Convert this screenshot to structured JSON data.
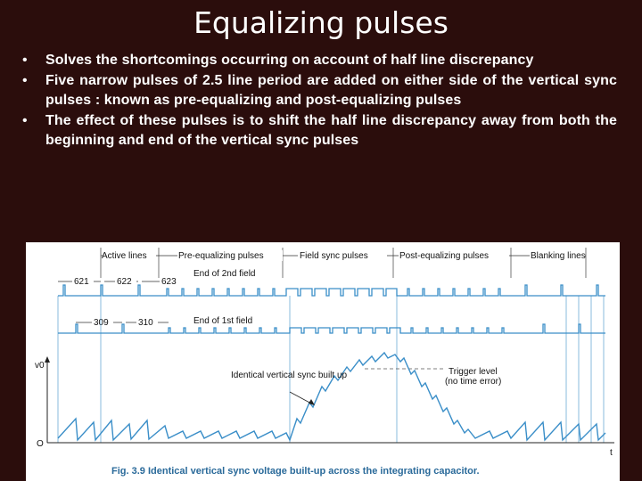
{
  "title": "Equalizing pulses",
  "bullets": [
    "Solves the shortcomings occurring on account of half line discrepancy",
    "Five narrow pulses of 2.5 line period are added on either side of the vertical sync pulses : known as pre-equalizing and post-equalizing pulses",
    "The effect of these pulses is to shift the half line discrepancy away from both the beginning and end of the vertical sync pulses"
  ],
  "bullet_marker": "•",
  "figure": {
    "segments": [
      "Active lines",
      "Pre-equalizing pulses",
      "Field sync pulses",
      "Post-equalizing pulses",
      "Blanking lines"
    ],
    "end_2nd_field": "End of 2nd field",
    "end_1st_field": "End of 1st field",
    "line_numbers_top": [
      "621",
      "622",
      "623"
    ],
    "line_numbers_bottom": [
      "309",
      "310"
    ],
    "y_axis": "v0",
    "x_axis": "t",
    "origin": "O",
    "annotation_buildup": "Identical vertical sync built up",
    "trigger_level": "Trigger level",
    "trigger_note": "(no time error)",
    "caption": "Fig. 3.9 Identical vertical sync voltage built-up across the integrating capacitor."
  },
  "colors": {
    "background": "#2b0d0c",
    "text": "#ffffff",
    "waveform": "#3a8ec8",
    "caption": "#2a6a9a"
  }
}
